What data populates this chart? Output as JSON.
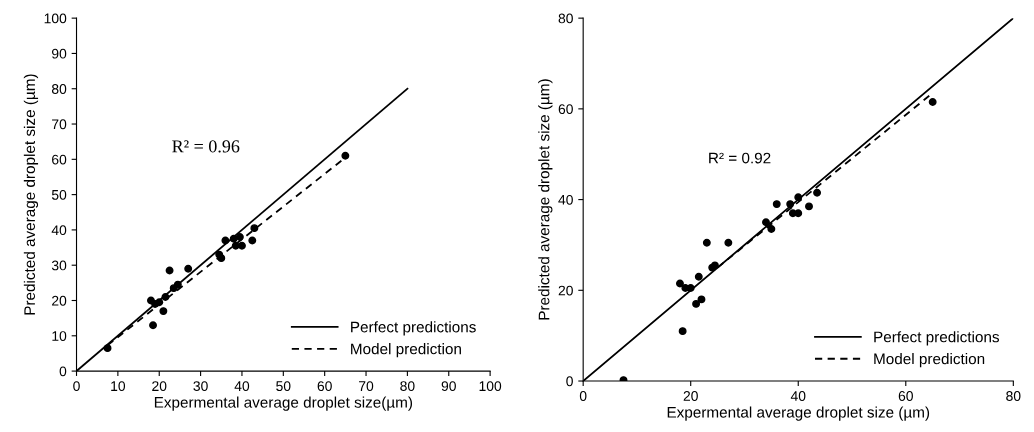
{
  "chart_data": [
    {
      "type": "scatter",
      "xlabel": "Expermental average droplet size(µm)",
      "ylabel": "Predicted average droplet size (µm)",
      "xlim": [
        0,
        100
      ],
      "ylim": [
        0,
        100
      ],
      "xticks": [
        0,
        10,
        20,
        30,
        40,
        50,
        60,
        70,
        80,
        90,
        100
      ],
      "yticks": [
        0,
        10,
        20,
        30,
        40,
        50,
        60,
        70,
        80,
        90,
        100
      ],
      "grid": false,
      "legend": "bottom right",
      "annotations": [
        "R² = 0.96"
      ],
      "series": [
        {
          "color": "#000000",
          "marker": "circle",
          "x": [
            7.5,
            18,
            18.5,
            19,
            20,
            21,
            21.5,
            22.5,
            23.5,
            24.5,
            27,
            34.5,
            35,
            36,
            38,
            38.5,
            39.5,
            40,
            42.5,
            43,
            65
          ],
          "values": [
            6.5,
            20,
            13,
            19,
            19.5,
            17,
            21,
            28.5,
            23.5,
            24.5,
            29,
            33,
            32,
            37,
            37.5,
            35.5,
            38,
            35.5,
            37,
            40.5,
            61
          ]
        },
        {
          "type": "line",
          "name": "Perfect predictions",
          "color": "#000000",
          "line_style": "solid",
          "x": [
            0,
            80
          ],
          "values": [
            0,
            80
          ]
        },
        {
          "type": "line",
          "name": "Model prediction",
          "color": "#000000",
          "line_style": "dashed",
          "x": [
            7.5,
            65
          ],
          "values": [
            7.3,
            60.5
          ]
        }
      ]
    },
    {
      "type": "scatter",
      "xlabel": "Expermental average droplet size (µm)",
      "ylabel": "Predicted average droplet size (µm)",
      "xlim": [
        0,
        80
      ],
      "ylim": [
        0,
        80
      ],
      "xticks": [
        0,
        20,
        40,
        60,
        80
      ],
      "yticks": [
        0,
        20,
        40,
        60,
        80
      ],
      "grid": false,
      "legend": "bottom right",
      "annotations": [
        "R² = 0.92"
      ],
      "series": [
        {
          "color": "#000000",
          "marker": "circle",
          "x": [
            7.5,
            18,
            18.5,
            19,
            20,
            21,
            21.5,
            22,
            23,
            24,
            24.5,
            27,
            34,
            35,
            36,
            38.5,
            39,
            40,
            40,
            42,
            43.5,
            65
          ],
          "values": [
            0.2,
            21.5,
            11,
            20.5,
            20.5,
            17,
            23,
            18,
            30.5,
            25,
            25.5,
            30.5,
            35,
            33.5,
            39,
            39,
            37,
            40.5,
            37,
            38.5,
            41.5,
            61.5
          ]
        },
        {
          "type": "line",
          "name": "Perfect predictions",
          "color": "#000000",
          "line_style": "solid",
          "x": [
            0,
            80
          ],
          "values": [
            0,
            80
          ]
        },
        {
          "type": "line",
          "name": "Model prediction",
          "color": "#000000",
          "line_style": "dashed",
          "x": [
            25,
            65
          ],
          "values": [
            25,
            63.5
          ]
        }
      ]
    }
  ]
}
